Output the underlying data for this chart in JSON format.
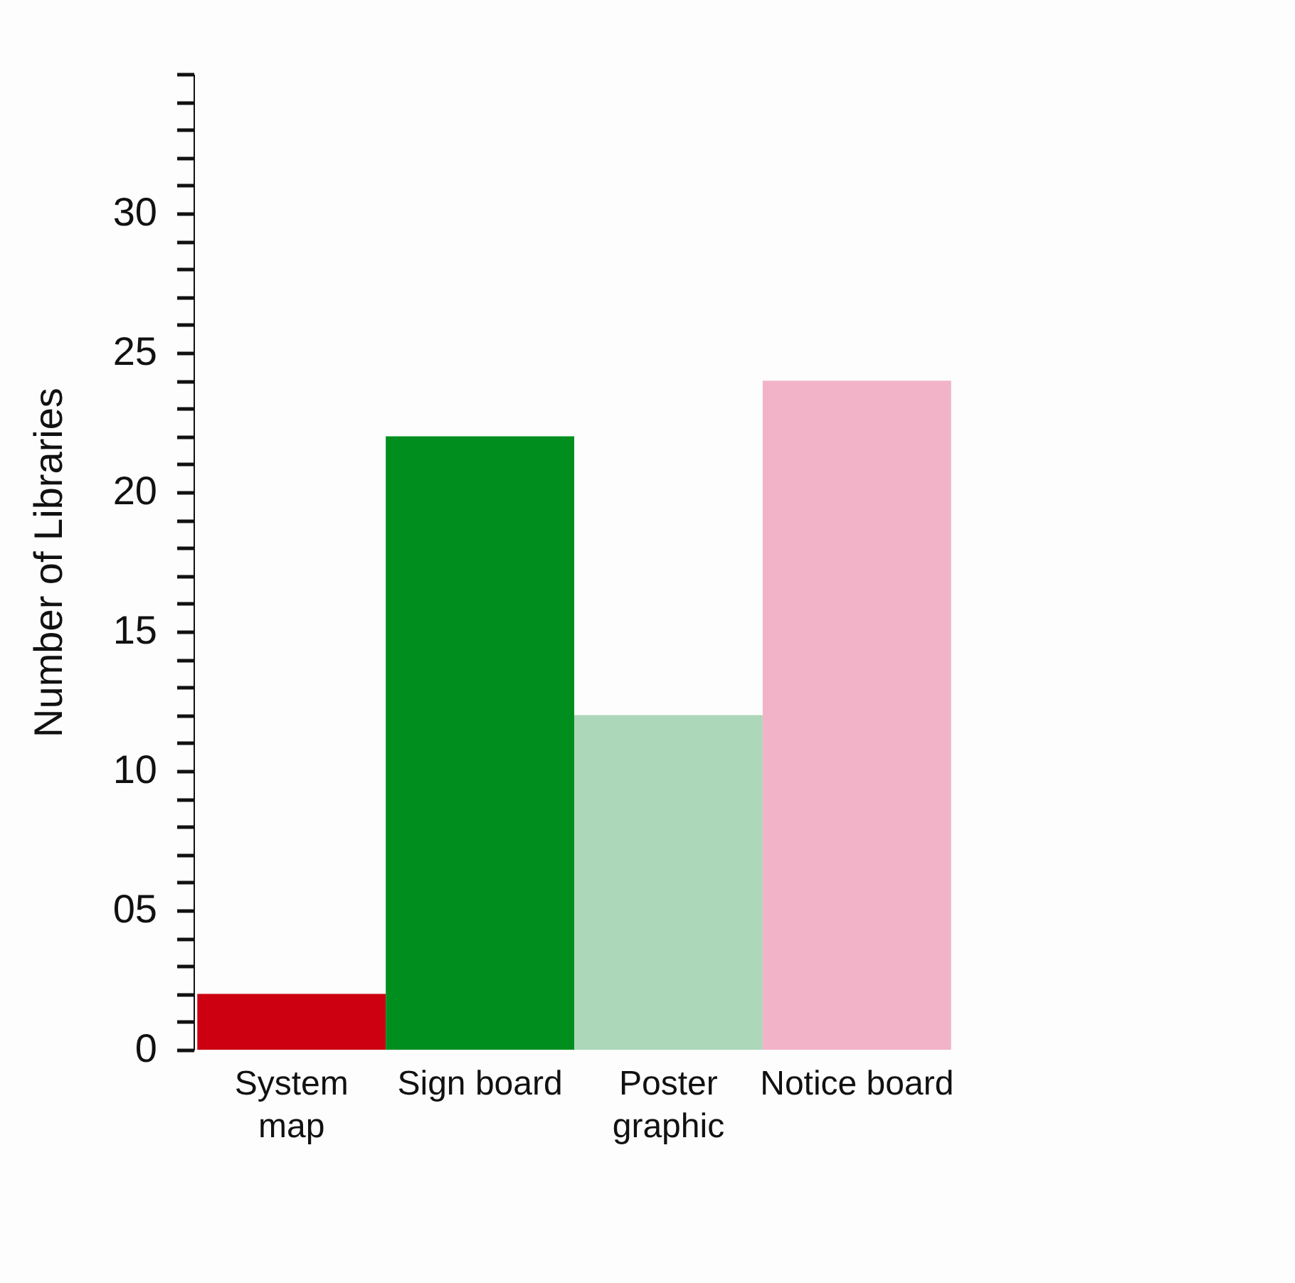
{
  "chart_data": {
    "type": "bar",
    "ylabel": "Number of Libraries",
    "categories": [
      "System\nmap",
      "Sign board",
      "Poster\ngraphic",
      "Notice board"
    ],
    "values": [
      2,
      22,
      12,
      24
    ],
    "colors": [
      "#cc0011",
      "#008f1f",
      "#acd7b9",
      "#f2b3c8"
    ],
    "ylim": [
      0,
      35
    ],
    "yticks": [
      0,
      {
        "value": 1,
        "label": null
      },
      {
        "value": 2,
        "label": null
      },
      {
        "value": 3,
        "label": null
      },
      {
        "value": 4,
        "label": null
      },
      {
        "value": 5,
        "label": "05"
      },
      {
        "value": 6,
        "label": null
      },
      {
        "value": 7,
        "label": null
      },
      {
        "value": 8,
        "label": null
      },
      {
        "value": 9,
        "label": null
      },
      10,
      {
        "value": 11,
        "label": null
      },
      {
        "value": 12,
        "label": null
      },
      {
        "value": 13,
        "label": null
      },
      {
        "value": 14,
        "label": null
      },
      15,
      {
        "value": 16,
        "label": null
      },
      {
        "value": 17,
        "label": null
      },
      {
        "value": 18,
        "label": null
      },
      {
        "value": 19,
        "label": null
      },
      20,
      {
        "value": 21,
        "label": null
      },
      {
        "value": 22,
        "label": null
      },
      {
        "value": 23,
        "label": null
      },
      {
        "value": 24,
        "label": null
      },
      25,
      {
        "value": 26,
        "label": null
      },
      {
        "value": 27,
        "label": null
      },
      {
        "value": 28,
        "label": null
      },
      {
        "value": 29,
        "label": null
      },
      30,
      {
        "value": 31,
        "label": null
      },
      {
        "value": 32,
        "label": null
      },
      {
        "value": 33,
        "label": null
      },
      {
        "value": 34,
        "label": null
      },
      {
        "value": 35,
        "label": null
      }
    ],
    "grid": false
  }
}
